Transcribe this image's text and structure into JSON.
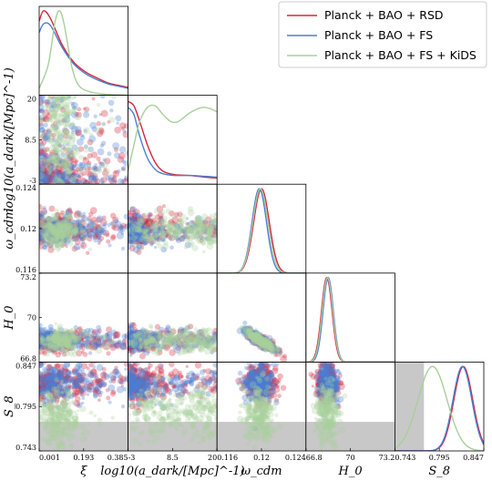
{
  "chart_data": {
    "type": "corner",
    "parameters": [
      {
        "key": "xi",
        "label": "ξ",
        "ticks": [
          "0.001",
          "0.193",
          "0.385"
        ],
        "range": [
          0.001,
          0.385
        ]
      },
      {
        "key": "log_a_dark",
        "label": "log10(a_dark/[Mpc]^-1)",
        "ticks": [
          "-3",
          "8.5",
          "20"
        ],
        "range": [
          -3,
          20
        ]
      },
      {
        "key": "omega_cdm",
        "label": "ω_cdm",
        "ticks": [
          "0.116",
          "0.12",
          "0.124"
        ],
        "range": [
          0.116,
          0.124
        ]
      },
      {
        "key": "H0",
        "label": "H_0",
        "ticks": [
          "66.8",
          "70",
          "73.2"
        ],
        "range": [
          66.8,
          73.2
        ]
      },
      {
        "key": "S8",
        "label": "S_8",
        "ticks": [
          "0.743",
          "0.795",
          "0.847"
        ],
        "range": [
          0.743,
          0.847
        ]
      }
    ],
    "series": [
      {
        "name": "Planck + BAO + RSD",
        "color": "#d7263d"
      },
      {
        "name": "Planck + BAO + FS",
        "color": "#4a7fd4"
      },
      {
        "name": "Planck + BAO + FS + KiDS",
        "color": "#a8cf9a"
      }
    ],
    "marginals": {
      "xi": {
        "Planck + BAO + RSD": [
          [
            0.001,
            0.85
          ],
          [
            0.02,
            0.97
          ],
          [
            0.05,
            0.88
          ],
          [
            0.1,
            0.58
          ],
          [
            0.15,
            0.38
          ],
          [
            0.2,
            0.27
          ],
          [
            0.25,
            0.2
          ],
          [
            0.3,
            0.14
          ],
          [
            0.35,
            0.11
          ],
          [
            0.385,
            0.09
          ]
        ],
        "Planck + BAO + FS": [
          [
            0.001,
            0.72
          ],
          [
            0.02,
            0.82
          ],
          [
            0.05,
            0.8
          ],
          [
            0.1,
            0.55
          ],
          [
            0.15,
            0.36
          ],
          [
            0.2,
            0.25
          ],
          [
            0.25,
            0.18
          ],
          [
            0.3,
            0.13
          ],
          [
            0.35,
            0.1
          ],
          [
            0.385,
            0.08
          ]
        ],
        "Planck + BAO + FS + KiDS": [
          [
            0.001,
            0.08
          ],
          [
            0.04,
            0.35
          ],
          [
            0.07,
            0.85
          ],
          [
            0.09,
            0.97
          ],
          [
            0.11,
            0.8
          ],
          [
            0.14,
            0.35
          ],
          [
            0.17,
            0.12
          ],
          [
            0.22,
            0.04
          ],
          [
            0.3,
            0.01
          ],
          [
            0.385,
            0.0
          ]
        ]
      },
      "log_a_dark": {
        "Planck + BAO + RSD": [
          [
            -3,
            0.95
          ],
          [
            -1.5,
            0.9
          ],
          [
            0,
            0.72
          ],
          [
            2,
            0.45
          ],
          [
            4,
            0.25
          ],
          [
            6,
            0.15
          ],
          [
            9,
            0.11
          ],
          [
            13,
            0.1
          ],
          [
            17,
            0.08
          ],
          [
            20,
            0.07
          ]
        ],
        "Planck + BAO + FS": [
          [
            -3,
            0.88
          ],
          [
            -1.5,
            0.8
          ],
          [
            0,
            0.55
          ],
          [
            2,
            0.3
          ],
          [
            4,
            0.17
          ],
          [
            6,
            0.12
          ],
          [
            9,
            0.1
          ],
          [
            13,
            0.1
          ],
          [
            17,
            0.09
          ],
          [
            20,
            0.08
          ]
        ],
        "Planck + BAO + FS + KiDS": [
          [
            -3,
            0.15
          ],
          [
            -1.5,
            0.45
          ],
          [
            0,
            0.72
          ],
          [
            2,
            0.88
          ],
          [
            4,
            0.9
          ],
          [
            6,
            0.8
          ],
          [
            8,
            0.72
          ],
          [
            10,
            0.72
          ],
          [
            13,
            0.82
          ],
          [
            16,
            0.88
          ],
          [
            18,
            0.87
          ],
          [
            20,
            0.83
          ]
        ]
      },
      "omega_cdm": {
        "Planck + BAO + RSD": {
          "mean": 0.12,
          "sd": 0.0007
        },
        "Planck + BAO + FS": {
          "mean": 0.1198,
          "sd": 0.00065
        },
        "Planck + BAO + FS + KiDS": {
          "mean": 0.1199,
          "sd": 0.00068
        }
      },
      "H0": {
        "Planck + BAO + RSD": {
          "mean": 68.3,
          "sd": 0.38
        },
        "Planck + BAO + FS": {
          "mean": 68.4,
          "sd": 0.37
        },
        "Planck + BAO + FS + KiDS": {
          "mean": 68.35,
          "sd": 0.38
        }
      },
      "S8": {
        "Planck + BAO + RSD": {
          "mean": 0.823,
          "sd": 0.011
        },
        "Planck + BAO + FS": {
          "mean": 0.822,
          "sd": 0.011
        },
        "Planck + BAO + FS + KiDS": {
          "mean": 0.787,
          "sd": 0.017
        }
      }
    },
    "s8_band": [
      0.743,
      0.777
    ],
    "legend_position": "top-right",
    "grid": false
  }
}
